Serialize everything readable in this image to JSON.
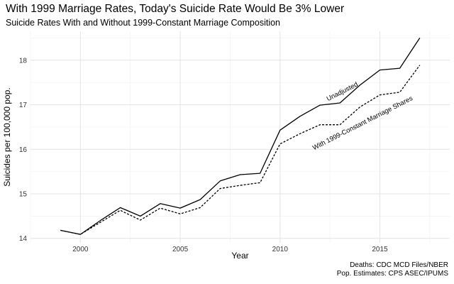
{
  "title": "With 1999 Marriage Rates, Today's Suicide Rate Would Be 3% Lower",
  "subtitle": "Suicide Rates With and Without 1999-Constant Marriage Composition",
  "caption": [
    "Deaths: CDC MCD Files/NBER",
    "Pop. Estimates: CPS ASEC/IPUMS"
  ],
  "chart_data": {
    "type": "line",
    "xlabel": "Year",
    "ylabel": "Suicides per 100,000 pop.",
    "xlim": [
      1997.5,
      2018.5
    ],
    "ylim": [
      13.9,
      18.65
    ],
    "x_ticks": [
      2000,
      2005,
      2010,
      2015
    ],
    "y_ticks": [
      14,
      15,
      16,
      17,
      18
    ],
    "grid": true,
    "x": [
      1999,
      2000,
      2001,
      2002,
      2003,
      2004,
      2005,
      2006,
      2007,
      2008,
      2009,
      2010,
      2011,
      2012,
      2013,
      2014,
      2015,
      2016,
      2017
    ],
    "series": [
      {
        "name": "Unadjusted",
        "style": "solid",
        "values": [
          14.18,
          14.09,
          14.4,
          14.69,
          14.5,
          14.78,
          14.68,
          14.87,
          15.29,
          15.43,
          15.46,
          16.43,
          16.74,
          16.99,
          17.04,
          17.44,
          17.78,
          17.82,
          18.5
        ]
      },
      {
        "name": "With 1999-Constant Marriage Shares",
        "style": "dashed",
        "values": [
          14.18,
          14.09,
          14.36,
          14.63,
          14.41,
          14.68,
          14.55,
          14.69,
          15.12,
          15.19,
          15.25,
          16.12,
          16.35,
          16.55,
          16.55,
          16.95,
          17.22,
          17.28,
          17.89
        ]
      }
    ]
  }
}
